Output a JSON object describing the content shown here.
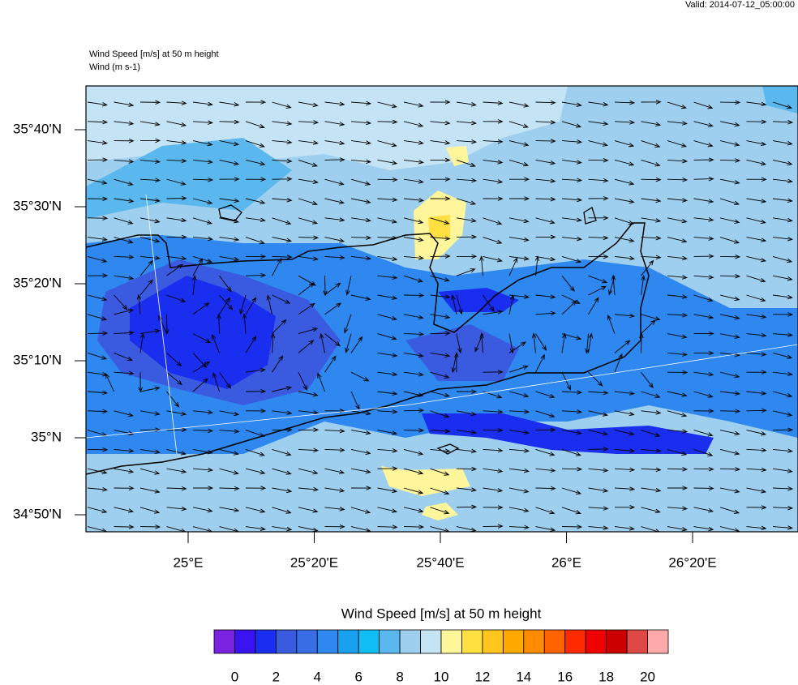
{
  "valid": "Valid: 2014-07-12_05:00:00",
  "title_lines": [
    "Wind Speed [m/s] at 50 m height",
    "Wind   (m s-1)"
  ],
  "map": {
    "lat_labels": [
      "35°40'N",
      "35°30'N",
      "35°20'N",
      "35°10'N",
      "35°N",
      "34°50'N"
    ],
    "lon_labels": [
      "25°E",
      "25°20'E",
      "25°40'E",
      "26°E",
      "26°20'E"
    ]
  },
  "colorbar": {
    "title": "Wind Speed [m/s] at 50 m height",
    "colors": [
      "#7b22e0",
      "#3a14f0",
      "#1a2ef0",
      "#3a5ae0",
      "#3a6ee6",
      "#2f88f0",
      "#1aa0f0",
      "#10bdf5",
      "#5ab8ee",
      "#9ecfee",
      "#c4e4f6",
      "#fff59a",
      "#ffe040",
      "#ffc61e",
      "#ffa800",
      "#ff8c00",
      "#ff6400",
      "#ff2a00",
      "#f00000",
      "#cc0000",
      "#e04848",
      "#ffaaaa"
    ],
    "labels": [
      0,
      2,
      4,
      6,
      8,
      10,
      12,
      14,
      16,
      18,
      20
    ]
  }
}
